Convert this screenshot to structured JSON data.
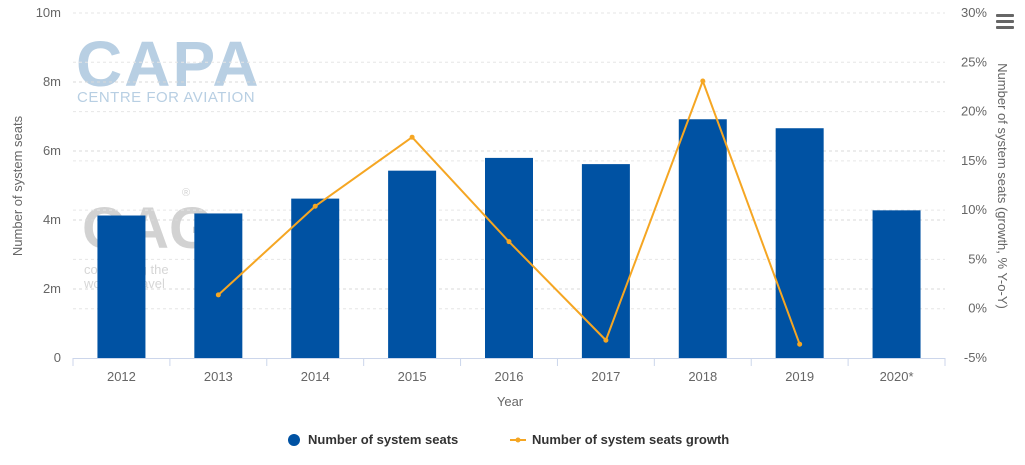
{
  "chart_data": {
    "type": "bar",
    "xlabel": "Year",
    "ylabel_left": "Number of system seats",
    "ylabel_right": "Number of system seats (growth, % Y-o-Y)",
    "categories": [
      "2012",
      "2013",
      "2014",
      "2015",
      "2016",
      "2017",
      "2018",
      "2019",
      "2020*"
    ],
    "ylim_left": [
      0,
      10000000
    ],
    "ylim_right": [
      -5,
      30
    ],
    "left_ticks": [
      {
        "value": 0,
        "label": "0"
      },
      {
        "value": 2000000,
        "label": "2m"
      },
      {
        "value": 4000000,
        "label": "4m"
      },
      {
        "value": 6000000,
        "label": "6m"
      },
      {
        "value": 8000000,
        "label": "8m"
      },
      {
        "value": 10000000,
        "label": "10m"
      }
    ],
    "right_ticks": [
      {
        "value": -5,
        "label": "-5%"
      },
      {
        "value": 0,
        "label": "0%"
      },
      {
        "value": 5,
        "label": "5%"
      },
      {
        "value": 10,
        "label": "10%"
      },
      {
        "value": 15,
        "label": "15%"
      },
      {
        "value": 20,
        "label": "20%"
      },
      {
        "value": 25,
        "label": "25%"
      },
      {
        "value": 30,
        "label": "30%"
      }
    ],
    "grid": true,
    "legend_position": "bottom-center",
    "series": [
      {
        "name": "Number of system seats",
        "type": "bar",
        "axis": "left",
        "color": "#0052a3",
        "values": [
          4130000,
          4190000,
          4620000,
          5430000,
          5800000,
          5620000,
          6920000,
          6660000,
          4280000
        ]
      },
      {
        "name": "Number of system seats growth",
        "type": "line",
        "axis": "right",
        "color": "#f5a623",
        "values": [
          null,
          1.4,
          10.4,
          17.4,
          6.8,
          -3.2,
          23.1,
          -3.6,
          null
        ]
      }
    ]
  },
  "watermark": {
    "capa_logo": "CAPA",
    "capa_sub": "CENTRE FOR AVIATION",
    "oag_logo": "OAG",
    "oag_registered": "®",
    "oag_tagline_1": "connecting the",
    "oag_tagline_2": "world of travel"
  },
  "menu_icon": "hamburger-menu-icon"
}
